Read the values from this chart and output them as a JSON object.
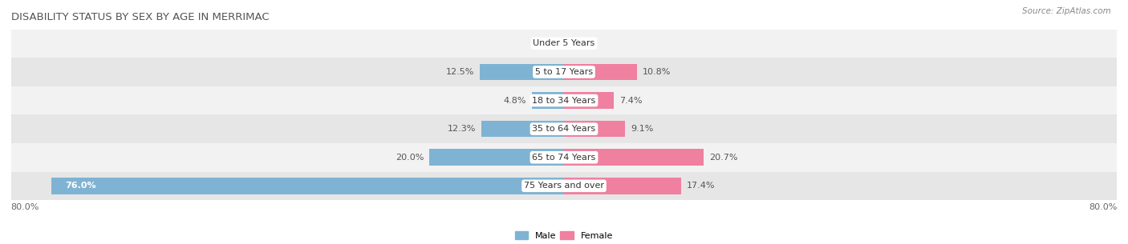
{
  "title": "DISABILITY STATUS BY SEX BY AGE IN MERRIMAC",
  "source": "Source: ZipAtlas.com",
  "categories": [
    "Under 5 Years",
    "5 to 17 Years",
    "18 to 34 Years",
    "35 to 64 Years",
    "65 to 74 Years",
    "75 Years and over"
  ],
  "male_values": [
    0.0,
    12.5,
    4.8,
    12.3,
    20.0,
    76.0
  ],
  "female_values": [
    0.0,
    10.8,
    7.4,
    9.1,
    20.7,
    17.4
  ],
  "male_color": "#7fb3d3",
  "female_color": "#f080a0",
  "row_bg_even": "#f2f2f2",
  "row_bg_odd": "#e6e6e6",
  "xlim_left": -82,
  "xlim_right": 82,
  "title_fontsize": 9.5,
  "label_fontsize": 8.0,
  "tick_fontsize": 8.0,
  "bar_height": 0.58,
  "figsize": [
    14.06,
    3.05
  ],
  "dpi": 100
}
